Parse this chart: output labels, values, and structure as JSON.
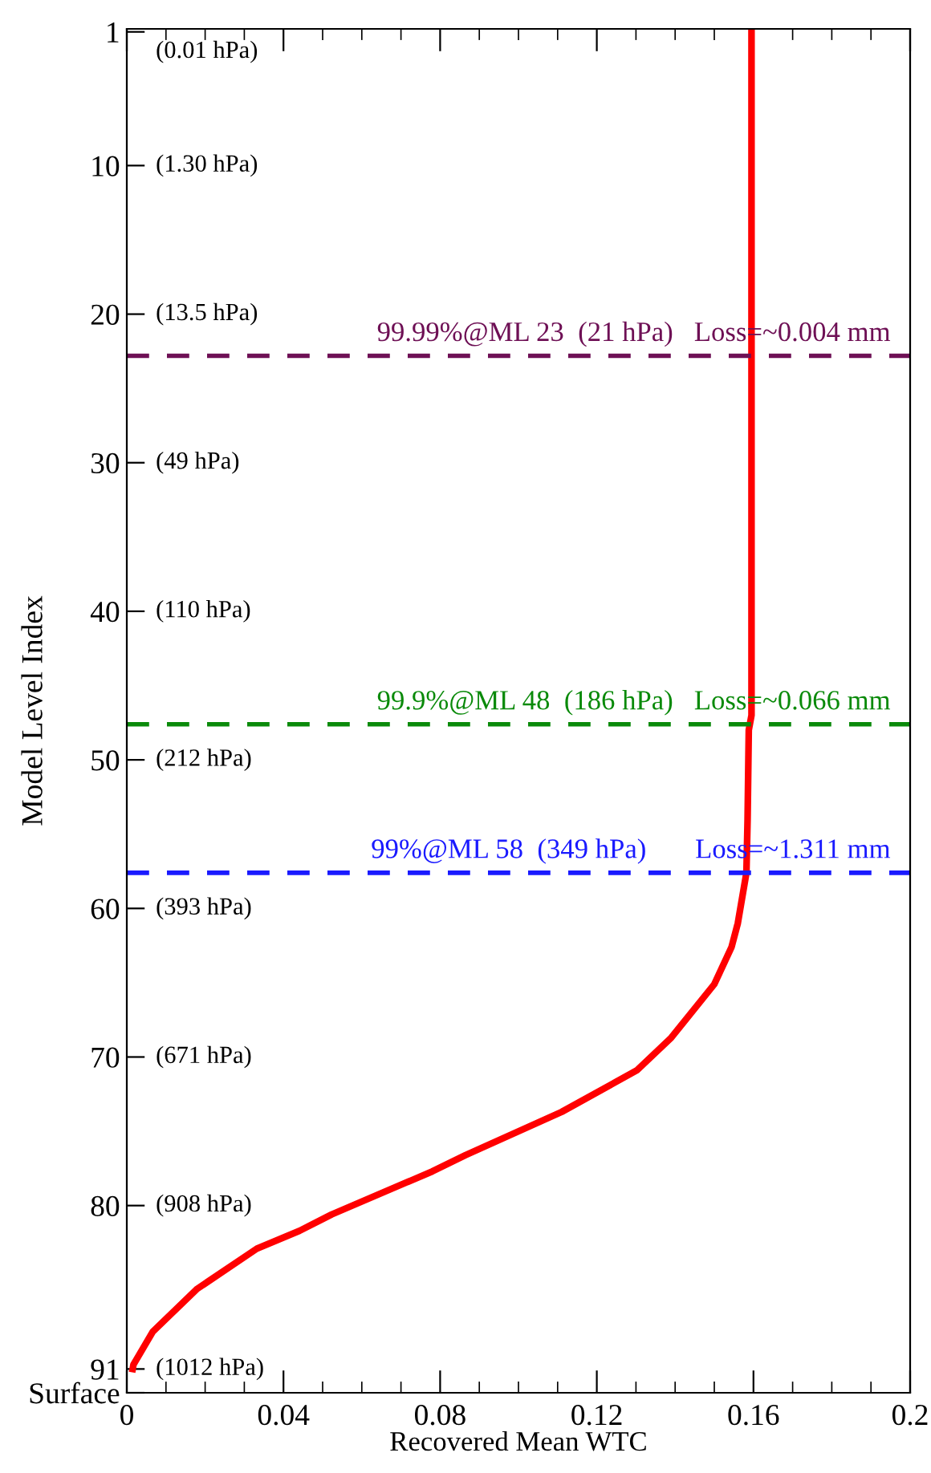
{
  "chart_data": {
    "type": "line",
    "xlabel": "Recovered Mean WTC",
    "ylabel": "Model Level Index",
    "x": [
      0.0015,
      0.0017,
      0.0066,
      0.018,
      0.0332,
      0.0441,
      0.0523,
      0.078,
      0.0865,
      0.111,
      0.1302,
      0.139,
      0.15,
      0.1544,
      0.156,
      0.1582,
      0.1585,
      0.1588,
      0.1595,
      0.1595
    ],
    "series": [
      {
        "color": "#ff0000",
        "values": [
          91,
          90.7,
          88.5,
          85.6,
          82.9,
          81.7,
          80.6,
          77.7,
          76.6,
          73.7,
          70.9,
          68.7,
          65.1,
          62.6,
          61,
          57.6,
          54,
          48,
          47,
          1
        ]
      }
    ],
    "xlim": [
      0,
      0.2
    ],
    "xticks": [
      0,
      {
        "value": 0.01,
        "label": null
      },
      {
        "value": 0.02,
        "label": null
      },
      {
        "value": 0.03,
        "label": null
      },
      0.04,
      {
        "value": 0.05,
        "label": null
      },
      {
        "value": 0.06,
        "label": null
      },
      {
        "value": 0.07,
        "label": null
      },
      0.08,
      {
        "value": 0.09,
        "label": null
      },
      {
        "value": 0.1,
        "label": null
      },
      {
        "value": 0.11,
        "label": null
      },
      0.12,
      {
        "value": 0.13,
        "label": null
      },
      {
        "value": 0.14,
        "label": null
      },
      {
        "value": 0.15,
        "label": null
      },
      0.16,
      {
        "value": 0.17,
        "label": null
      },
      {
        "value": 0.18,
        "label": null
      },
      {
        "value": 0.19,
        "label": null
      },
      0.2
    ],
    "ylim": [
      92.6,
      0.8
    ],
    "yticks": [
      1,
      10,
      20,
      30,
      40,
      50,
      60,
      70,
      80,
      91,
      {
        "value": 92.6,
        "label": "Surface"
      }
    ],
    "ref_lines": [
      {
        "axis": "y",
        "value": 22.8,
        "label": "99.99%@ML 23  (21 hPa)   Loss=~0.004 mm",
        "color": "#6e1055",
        "line_style": "dashed"
      },
      {
        "axis": "y",
        "value": 47.6,
        "label": "99.9%@ML 48  (186 hPa)   Loss=~0.066 mm",
        "color": "#0a8a0a",
        "line_style": "dashed"
      },
      {
        "axis": "y",
        "value": 57.6,
        "label": "99%@ML 58  (349 hPa)       Loss=~1.311 mm",
        "color": "#1a1aff",
        "line_style": "dashed"
      }
    ],
    "annotations": [
      "(0.01 hPa)",
      "(1.30 hPa)",
      "(13.5 hPa)",
      "(49 hPa)",
      "(110 hPa)",
      "(212 hPa)",
      "(393 hPa)",
      "(671 hPa)",
      "(908 hPa)",
      "(1012 hPa)"
    ],
    "grid": false,
    "legend": false,
    "line_style": "solid",
    "marker": "none"
  }
}
